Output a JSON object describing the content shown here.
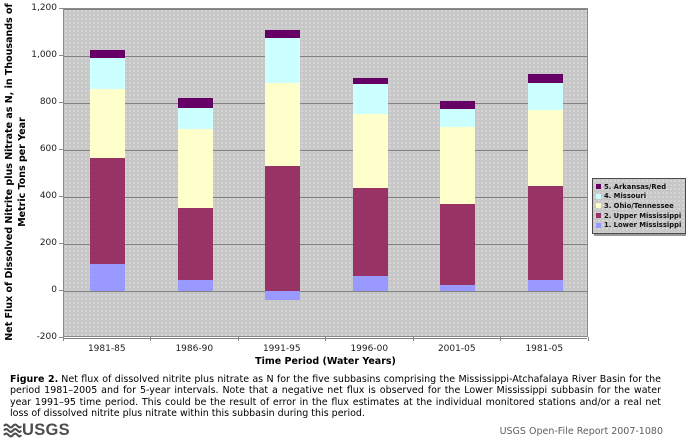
{
  "chart_data": {
    "type": "bar",
    "stacked": true,
    "categories": [
      "1981-85",
      "1986-90",
      "1991-95",
      "1996-00",
      "2001-05",
      "1981-05"
    ],
    "series": [
      {
        "name": "1. Lower Mississippi",
        "color": "#9999FF",
        "values": [
          115,
          45,
          -40,
          65,
          25,
          45
        ]
      },
      {
        "name": "2. Upper Mississippi",
        "color": "#993366",
        "values": [
          450,
          310,
          530,
          375,
          345,
          400
        ]
      },
      {
        "name": "3. Ohio/Tennessee",
        "color": "#FFFFCC",
        "values": [
          295,
          335,
          355,
          315,
          330,
          325
        ]
      },
      {
        "name": "4. Missouri",
        "color": "#CCFFFF",
        "values": [
          130,
          90,
          190,
          125,
          75,
          115
        ]
      },
      {
        "name": "5. Arkansas/Red",
        "color": "#660066",
        "values": [
          35,
          40,
          35,
          25,
          35,
          40
        ]
      }
    ],
    "xlabel": "Time Period (Water Years)",
    "ylabel_line1": "Net Flux of Dissolved Nitrite plus Nitrate as N, in Thousands of",
    "ylabel_line2": "Metric Tons per Year",
    "ylim": [
      -200,
      1200
    ],
    "ytick_values": [
      -200,
      0,
      200,
      400,
      600,
      800,
      1000,
      1200
    ],
    "ytick_labels": [
      "-200",
      "0",
      "200",
      "400",
      "600",
      "800",
      "1,000",
      "1,200"
    ],
    "grid": true,
    "legend_position": "right",
    "legend_order": "reversed"
  },
  "caption": {
    "label": "Figure 2.",
    "text": "Net flux of dissolved nitrite plus nitrate as N for the five subbasins comprising the Mississippi-Atchafalaya River Basin for the period 1981–2005 and for 5-year intervals. Note that a negative net flux is observed for the Lower Mississippi subbasin for the water year 1991–95 time period. This could be the result of error in the flux estimates at the individual monitored stations and/or a real net loss of dissolved nitrite plus nitrate within this subbasin during this period."
  },
  "footer": {
    "logo_text": "USGS",
    "report": "USGS Open-File Report 2007-1080"
  },
  "colors": {
    "plot_background": "#C7C7C7",
    "gridline": "#828282",
    "page_background": "#FFFFFF",
    "footer_text": "#5F5F5F",
    "logo": "#4D4D4D"
  }
}
